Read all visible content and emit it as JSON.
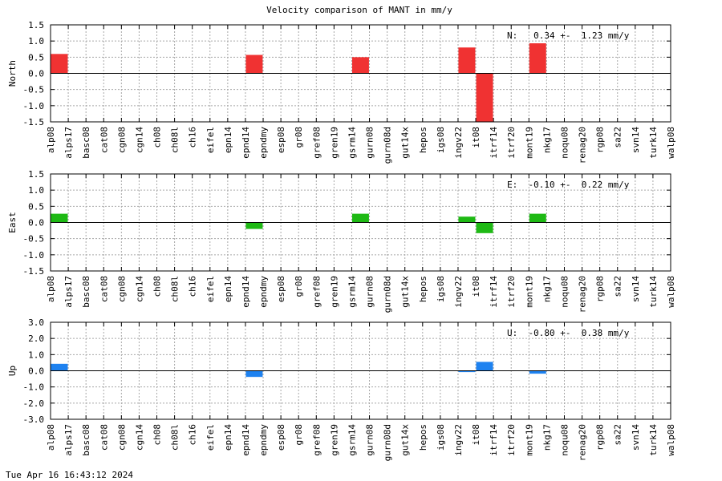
{
  "title": "Velocity comparison of MANT in mm/y",
  "timestamp": "Tue Apr 16 16:43:12 2024",
  "chart_data": [
    {
      "type": "bar",
      "ylabel": "North",
      "color": "#f03232",
      "ylim": [
        -1.5,
        1.5
      ],
      "yticks": [
        "-1.5",
        "-1.0",
        "-0.5",
        "0.0",
        "0.5",
        "1.0",
        "1.5"
      ],
      "summary": "N:   0.34 +-  1.23 mm/y",
      "grid": true,
      "categories": [
        "alp08",
        "alps17",
        "basc08",
        "cat08",
        "cgn08",
        "cgn14",
        "ch08",
        "ch08l",
        "ch16",
        "eifel",
        "epn14",
        "epnd14",
        "epndmy",
        "esp08",
        "gr08",
        "gref08",
        "gren19",
        "gsrm14",
        "gurn08",
        "gurn08d",
        "gut14x",
        "hepos",
        "igs08",
        "ingv22",
        "it08",
        "itrf14",
        "itrf20",
        "mont19",
        "nkg17",
        "noqu08",
        "renag20",
        "rgp08",
        "sa22",
        "svn14",
        "turk14",
        "walp08"
      ],
      "values": [
        0.6,
        0,
        0,
        0,
        0,
        0,
        0,
        0,
        0,
        0,
        0,
        0.57,
        0,
        0,
        0,
        0,
        0,
        0.5,
        0,
        0,
        0,
        0,
        0,
        0.8,
        -1.55,
        0,
        0,
        0.93,
        0,
        0,
        0,
        0,
        0,
        0,
        0,
        0
      ]
    },
    {
      "type": "bar",
      "ylabel": "East",
      "color": "#1eb914",
      "ylim": [
        -1.5,
        1.5
      ],
      "yticks": [
        "-1.5",
        "-1.0",
        "-0.5",
        "0.0",
        "0.5",
        "1.0",
        "1.5"
      ],
      "summary": "E:  -0.10 +-  0.22 mm/y",
      "grid": true,
      "categories": [
        "alp08",
        "alps17",
        "basc08",
        "cat08",
        "cgn08",
        "cgn14",
        "ch08",
        "ch08l",
        "ch16",
        "eifel",
        "epn14",
        "epnd14",
        "epndmy",
        "esp08",
        "gr08",
        "gref08",
        "gren19",
        "gsrm14",
        "gurn08",
        "gurn08d",
        "gut14x",
        "hepos",
        "igs08",
        "ingv22",
        "it08",
        "itrf14",
        "itrf20",
        "mont19",
        "nkg17",
        "noqu08",
        "renag20",
        "rgp08",
        "sa22",
        "svn14",
        "turk14",
        "walp08"
      ],
      "values": [
        0.27,
        0,
        0,
        0,
        0,
        0,
        0,
        0,
        0,
        0,
        0,
        -0.2,
        0,
        0,
        0,
        0,
        0,
        0.27,
        0,
        0,
        0,
        0,
        0,
        0.18,
        -0.33,
        0,
        0,
        0.27,
        0,
        0,
        0,
        0,
        0,
        0,
        0,
        0
      ]
    },
    {
      "type": "bar",
      "ylabel": "Up",
      "color": "#1e82f0",
      "ylim": [
        -3.0,
        3.0
      ],
      "yticks": [
        "-3.0",
        "-2.0",
        "-1.0",
        "0.0",
        "1.0",
        "2.0",
        "3.0"
      ],
      "summary": "U:  -0.80 +-  0.38 mm/y",
      "grid": true,
      "categories": [
        "alp08",
        "alps17",
        "basc08",
        "cat08",
        "cgn08",
        "cgn14",
        "ch08",
        "ch08l",
        "ch16",
        "eifel",
        "epn14",
        "epnd14",
        "epndmy",
        "esp08",
        "gr08",
        "gref08",
        "gren19",
        "gsrm14",
        "gurn08",
        "gurn08d",
        "gut14x",
        "hepos",
        "igs08",
        "ingv22",
        "it08",
        "itrf14",
        "itrf20",
        "mont19",
        "nkg17",
        "noqu08",
        "renag20",
        "rgp08",
        "sa22",
        "svn14",
        "turk14",
        "walp08"
      ],
      "values": [
        0.43,
        0,
        0,
        0,
        0,
        0,
        0,
        0,
        0,
        0,
        0,
        -0.38,
        0,
        0,
        0,
        0,
        0,
        0,
        0,
        0,
        0,
        0,
        0,
        -0.08,
        0.55,
        0,
        0,
        -0.18,
        0,
        0,
        0,
        0,
        0,
        0,
        0,
        0
      ]
    }
  ]
}
